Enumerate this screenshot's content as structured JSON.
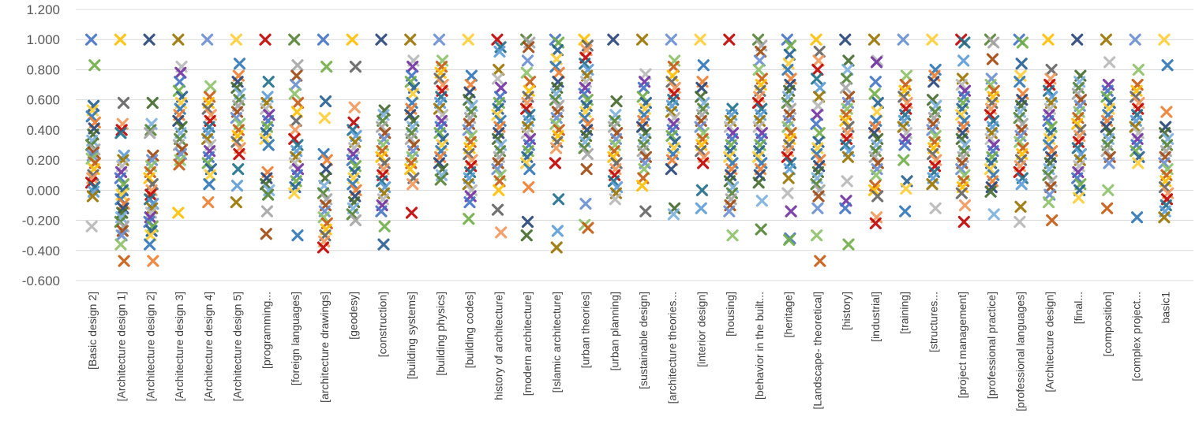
{
  "chart_data": {
    "type": "scatter",
    "marker": "x",
    "ylim": [
      -0.6,
      1.2
    ],
    "yticks": [
      "-0.600",
      "-0.400",
      "-0.200",
      "0.000",
      "0.200",
      "0.400",
      "0.600",
      "0.800",
      "1.000",
      "1.200"
    ],
    "ytick_values": [
      -0.6,
      -0.4,
      -0.2,
      0.0,
      0.2,
      0.4,
      0.6,
      0.8,
      1.0,
      1.2
    ],
    "grid": true,
    "legend": "none",
    "categories": [
      "[Basic design 2]",
      "[Architecture design 1]",
      "[Architecture design 2]",
      "[Architecture design 3]",
      "[Architecture design 4]",
      "[Architecture design 5]",
      "[programming...",
      "[foreign languages]",
      "[architecture drawings]",
      "[geodesy]",
      "[construction]",
      "[building systems]",
      "[building physics]",
      "[building codes]",
      "history of architecture]",
      "[modern architecture]",
      "[Islamic architecture]",
      "[urban theories]",
      "[urban planning]",
      "[sustainable design]",
      "[architecture theories...",
      "[interior design]",
      "[housing]",
      "[behavior in the built...",
      "[heritage]",
      "[Landscape- theoretical]",
      "[history]",
      "[industrial]",
      "[training]",
      "[structures...",
      "[project management]",
      "[professional practice]",
      "[professional languages]",
      "[Architecture design]",
      "[final...",
      "[composition]",
      "[complex project...",
      "basic1"
    ],
    "palette": [
      "#4472c4",
      "#ed7d31",
      "#a5a5a5",
      "#ffc000",
      "#5b9bd5",
      "#70ad47",
      "#264478",
      "#9e480e",
      "#636363",
      "#997300",
      "#255e91",
      "#43682b",
      "#698ed0",
      "#f1975a",
      "#b7b7b7",
      "#ffcd33",
      "#7cafdd",
      "#8cc168",
      "#c00000",
      "#7030a0",
      "#2e75b6",
      "#548235",
      "#c55a11",
      "#1f6f8b"
    ],
    "series": [
      {
        "category": "[Basic design 2]",
        "values": [
          1.0,
          0.83,
          0.56,
          0.53,
          0.49,
          0.45,
          0.41,
          0.37,
          0.33,
          0.3,
          0.27,
          0.25,
          0.23,
          0.21,
          0.18,
          0.14,
          0.1,
          0.08,
          0.05,
          0.02,
          -0.01,
          -0.04,
          -0.24
        ]
      },
      {
        "category": "[Architecture design 1]",
        "values": [
          1.0,
          0.58,
          0.44,
          0.4,
          0.38,
          0.23,
          0.2,
          0.16,
          0.12,
          0.08,
          0.04,
          0.0,
          -0.03,
          -0.06,
          -0.09,
          -0.12,
          -0.15,
          -0.18,
          -0.21,
          -0.24,
          -0.27,
          -0.3,
          -0.36,
          -0.47
        ]
      },
      {
        "category": "[Architecture design 2]",
        "values": [
          1.0,
          0.58,
          0.44,
          0.4,
          0.38,
          0.23,
          0.2,
          0.16,
          0.12,
          0.08,
          0.04,
          0.0,
          -0.03,
          -0.06,
          -0.09,
          -0.12,
          -0.15,
          -0.18,
          -0.21,
          -0.24,
          -0.27,
          -0.3,
          -0.36,
          -0.47
        ]
      },
      {
        "category": "[Architecture design 3]",
        "values": [
          1.0,
          0.82,
          0.78,
          0.72,
          0.66,
          0.62,
          0.58,
          0.54,
          0.5,
          0.46,
          0.42,
          0.38,
          0.34,
          0.3,
          0.27,
          0.24,
          0.2,
          0.17,
          -0.15
        ]
      },
      {
        "category": "[Architecture design 4]",
        "values": [
          1.0,
          0.69,
          0.62,
          0.58,
          0.54,
          0.5,
          0.46,
          0.42,
          0.38,
          0.34,
          0.3,
          0.26,
          0.22,
          0.18,
          0.14,
          0.1,
          0.04,
          -0.08
        ]
      },
      {
        "category": "[Architecture design 5]",
        "values": [
          1.0,
          0.84,
          0.76,
          0.72,
          0.68,
          0.64,
          0.6,
          0.56,
          0.52,
          0.48,
          0.44,
          0.4,
          0.36,
          0.32,
          0.28,
          0.24,
          0.14,
          0.03,
          -0.08
        ]
      },
      {
        "category": "[programming...",
        "values": [
          1.0,
          0.72,
          0.62,
          0.58,
          0.54,
          0.5,
          0.46,
          0.42,
          0.38,
          0.34,
          0.3,
          0.12,
          0.08,
          0.04,
          0.0,
          -0.03,
          -0.14,
          -0.29
        ]
      },
      {
        "category": "[foreign languages]",
        "values": [
          1.0,
          0.83,
          0.76,
          0.7,
          0.64,
          0.58,
          0.52,
          0.46,
          0.4,
          0.34,
          0.3,
          0.26,
          0.22,
          0.18,
          0.14,
          0.1,
          0.06,
          0.02,
          -0.02,
          -0.3
        ]
      },
      {
        "category": "[architecture drawings]",
        "values": [
          1.0,
          0.82,
          0.59,
          0.48,
          0.24,
          0.2,
          0.14,
          0.08,
          0.03,
          -0.02,
          -0.06,
          -0.1,
          -0.14,
          -0.18,
          -0.22,
          -0.26,
          -0.3,
          -0.34,
          -0.38
        ]
      },
      {
        "category": "[geodesy]",
        "values": [
          1.0,
          0.82,
          0.55,
          0.45,
          0.4,
          0.36,
          0.32,
          0.28,
          0.24,
          0.2,
          0.16,
          0.12,
          0.08,
          0.04,
          0.0,
          -0.04,
          -0.08,
          -0.12,
          -0.16,
          -0.2
        ]
      },
      {
        "category": "[construction]",
        "values": [
          1.0,
          0.53,
          0.5,
          0.46,
          0.42,
          0.38,
          0.34,
          0.3,
          0.26,
          0.22,
          0.18,
          0.14,
          0.1,
          0.06,
          0.02,
          -0.02,
          -0.06,
          -0.1,
          -0.14,
          -0.24,
          -0.36
        ]
      },
      {
        "category": "[building systems]",
        "values": [
          1.0,
          0.86,
          0.82,
          0.76,
          0.72,
          0.68,
          0.64,
          0.58,
          0.54,
          0.5,
          0.46,
          0.42,
          0.38,
          0.34,
          0.3,
          0.26,
          0.22,
          0.18,
          0.14,
          0.08,
          0.04,
          -0.15
        ]
      },
      {
        "category": "[building physics]",
        "values": [
          1.0,
          0.86,
          0.82,
          0.78,
          0.74,
          0.7,
          0.66,
          0.62,
          0.58,
          0.54,
          0.5,
          0.46,
          0.42,
          0.38,
          0.34,
          0.3,
          0.26,
          0.22,
          0.18,
          0.14,
          0.1,
          0.07
        ]
      },
      {
        "category": "[building codes]",
        "values": [
          1.0,
          0.76,
          0.7,
          0.65,
          0.6,
          0.56,
          0.52,
          0.48,
          0.44,
          0.4,
          0.36,
          0.32,
          0.28,
          0.24,
          0.2,
          0.16,
          0.12,
          0.08,
          0.04,
          0.0,
          -0.04,
          -0.08,
          -0.19
        ]
      },
      {
        "category": "history of architecture]",
        "values": [
          1.0,
          0.95,
          0.92,
          0.8,
          0.74,
          0.68,
          0.62,
          0.58,
          0.54,
          0.5,
          0.46,
          0.42,
          0.38,
          0.34,
          0.3,
          0.26,
          0.22,
          0.18,
          0.14,
          0.1,
          0.06,
          0.0,
          -0.13,
          -0.28
        ]
      },
      {
        "category": "[modern architecture]",
        "values": [
          1.0,
          0.98,
          0.95,
          0.86,
          0.78,
          0.72,
          0.66,
          0.62,
          0.58,
          0.54,
          0.5,
          0.46,
          0.42,
          0.38,
          0.34,
          0.3,
          0.26,
          0.22,
          0.18,
          0.14,
          0.02,
          -0.21,
          -0.3
        ]
      },
      {
        "category": "[Islamic architecture]",
        "values": [
          1.0,
          0.98,
          0.93,
          0.87,
          0.82,
          0.78,
          0.72,
          0.68,
          0.64,
          0.6,
          0.56,
          0.52,
          0.48,
          0.44,
          0.4,
          0.36,
          0.32,
          0.28,
          0.18,
          -0.06,
          -0.27,
          -0.38
        ]
      },
      {
        "category": "[urban theories]",
        "values": [
          1.0,
          0.96,
          0.93,
          0.88,
          0.84,
          0.8,
          0.76,
          0.72,
          0.68,
          0.64,
          0.6,
          0.56,
          0.52,
          0.48,
          0.44,
          0.4,
          0.36,
          0.32,
          0.28,
          0.24,
          0.14,
          -0.09,
          -0.23,
          -0.25
        ]
      },
      {
        "category": "[urban planning]",
        "values": [
          1.0,
          0.59,
          0.5,
          0.46,
          0.42,
          0.38,
          0.34,
          0.3,
          0.26,
          0.22,
          0.18,
          0.14,
          0.1,
          0.06,
          0.02,
          -0.02,
          -0.06
        ]
      },
      {
        "category": "[sustainable design]",
        "values": [
          1.0,
          0.77,
          0.72,
          0.68,
          0.62,
          0.58,
          0.54,
          0.5,
          0.46,
          0.42,
          0.38,
          0.34,
          0.3,
          0.26,
          0.22,
          0.18,
          0.14,
          0.08,
          0.03,
          -0.14
        ]
      },
      {
        "category": "[architecture theories...",
        "values": [
          1.0,
          0.86,
          0.82,
          0.76,
          0.72,
          0.68,
          0.64,
          0.6,
          0.56,
          0.52,
          0.48,
          0.44,
          0.4,
          0.36,
          0.32,
          0.28,
          0.24,
          0.2,
          0.14,
          -0.12,
          -0.16
        ]
      },
      {
        "category": "[interior design]",
        "values": [
          1.0,
          0.83,
          0.72,
          0.68,
          0.62,
          0.58,
          0.54,
          0.5,
          0.46,
          0.42,
          0.38,
          0.34,
          0.3,
          0.26,
          0.22,
          0.18,
          0.0,
          -0.12
        ]
      },
      {
        "category": "[housing]",
        "values": [
          1.0,
          0.54,
          0.5,
          0.46,
          0.42,
          0.38,
          0.34,
          0.3,
          0.26,
          0.22,
          0.18,
          0.14,
          0.1,
          0.06,
          0.02,
          -0.02,
          -0.06,
          -0.1,
          -0.14,
          -0.3
        ]
      },
      {
        "category": "[behavior in the built...",
        "values": [
          1.0,
          0.96,
          0.92,
          0.86,
          0.8,
          0.74,
          0.7,
          0.66,
          0.62,
          0.58,
          0.54,
          0.5,
          0.46,
          0.42,
          0.38,
          0.34,
          0.3,
          0.26,
          0.22,
          0.18,
          0.14,
          0.1,
          0.05,
          -0.07,
          -0.26
        ]
      },
      {
        "category": "[heritage]",
        "values": [
          1.0,
          0.96,
          0.9,
          0.84,
          0.8,
          0.74,
          0.7,
          0.66,
          0.62,
          0.58,
          0.54,
          0.5,
          0.46,
          0.42,
          0.38,
          0.34,
          0.3,
          0.26,
          0.22,
          0.18,
          0.14,
          0.08,
          -0.02,
          -0.14,
          -0.32,
          -0.33
        ]
      },
      {
        "category": "[Landscape- theoretical]",
        "values": [
          1.0,
          0.92,
          0.86,
          0.8,
          0.74,
          0.68,
          0.62,
          0.56,
          0.5,
          0.44,
          0.38,
          0.32,
          0.28,
          0.24,
          0.2,
          0.16,
          0.12,
          0.08,
          0.04,
          0.0,
          -0.04,
          -0.12,
          -0.3,
          -0.47
        ]
      },
      {
        "category": "[history]",
        "values": [
          1.0,
          0.86,
          0.8,
          0.74,
          0.68,
          0.62,
          0.58,
          0.54,
          0.5,
          0.46,
          0.42,
          0.38,
          0.34,
          0.3,
          0.26,
          0.22,
          0.06,
          -0.07,
          -0.12,
          -0.36
        ]
      },
      {
        "category": "[industrial]",
        "values": [
          1.0,
          0.86,
          0.85,
          0.72,
          0.64,
          0.58,
          0.52,
          0.46,
          0.42,
          0.38,
          0.34,
          0.3,
          0.26,
          0.22,
          0.18,
          0.14,
          0.1,
          0.03,
          0.0,
          -0.04,
          -0.18,
          -0.22
        ]
      },
      {
        "category": "[training]",
        "values": [
          1.0,
          0.76,
          0.7,
          0.66,
          0.62,
          0.58,
          0.54,
          0.5,
          0.46,
          0.42,
          0.38,
          0.34,
          0.3,
          0.2,
          0.06,
          0.01,
          -0.14
        ]
      },
      {
        "category": "[structures...",
        "values": [
          1.0,
          0.8,
          0.76,
          0.72,
          0.6,
          0.56,
          0.52,
          0.48,
          0.44,
          0.4,
          0.36,
          0.32,
          0.28,
          0.24,
          0.2,
          0.16,
          0.12,
          0.08,
          0.04,
          -0.12
        ]
      },
      {
        "category": "[project management]",
        "values": [
          1.0,
          0.98,
          0.86,
          0.74,
          0.7,
          0.66,
          0.62,
          0.58,
          0.54,
          0.5,
          0.46,
          0.42,
          0.38,
          0.34,
          0.3,
          0.26,
          0.22,
          0.18,
          0.14,
          0.1,
          0.06,
          0.02,
          -0.02,
          -0.1,
          -0.21
        ]
      },
      {
        "category": "[professional practice]",
        "values": [
          1.0,
          0.98,
          0.87,
          0.74,
          0.7,
          0.66,
          0.62,
          0.58,
          0.54,
          0.5,
          0.46,
          0.42,
          0.38,
          0.34,
          0.3,
          0.26,
          0.22,
          0.18,
          0.14,
          0.1,
          0.06,
          0.02,
          -0.01,
          -0.16
        ]
      },
      {
        "category": "[professional languages]",
        "values": [
          1.0,
          0.98,
          0.84,
          0.76,
          0.72,
          0.64,
          0.6,
          0.56,
          0.52,
          0.48,
          0.44,
          0.4,
          0.36,
          0.32,
          0.28,
          0.24,
          0.2,
          0.16,
          0.12,
          0.08,
          0.04,
          -0.11,
          -0.21
        ]
      },
      {
        "category": "[Architecture design]",
        "values": [
          1.0,
          0.8,
          0.74,
          0.7,
          0.66,
          0.62,
          0.58,
          0.54,
          0.5,
          0.46,
          0.42,
          0.38,
          0.34,
          0.3,
          0.26,
          0.22,
          0.18,
          0.14,
          0.1,
          0.06,
          0.02,
          -0.03,
          -0.08,
          -0.2
        ]
      },
      {
        "category": "[final...",
        "values": [
          1.0,
          0.76,
          0.72,
          0.68,
          0.64,
          0.6,
          0.56,
          0.52,
          0.48,
          0.44,
          0.4,
          0.36,
          0.32,
          0.28,
          0.24,
          0.2,
          0.16,
          0.12,
          0.08,
          0.04,
          0.0,
          -0.05
        ]
      },
      {
        "category": "[composition]",
        "values": [
          1.0,
          0.85,
          0.7,
          0.66,
          0.62,
          0.58,
          0.54,
          0.5,
          0.46,
          0.42,
          0.38,
          0.34,
          0.3,
          0.26,
          0.22,
          0.18,
          0.0,
          -0.12
        ]
      },
      {
        "category": "[complex project...",
        "values": [
          1.0,
          0.8,
          0.7,
          0.66,
          0.62,
          0.58,
          0.54,
          0.5,
          0.46,
          0.42,
          0.38,
          0.34,
          0.3,
          0.26,
          0.22,
          0.18,
          -0.18
        ]
      },
      {
        "category": "basic1",
        "values": [
          1.0,
          0.83,
          0.52,
          0.42,
          0.38,
          0.34,
          0.3,
          0.26,
          0.22,
          0.18,
          0.14,
          0.1,
          0.06,
          0.02,
          -0.02,
          -0.06,
          -0.1,
          -0.14,
          -0.18
        ]
      }
    ]
  }
}
